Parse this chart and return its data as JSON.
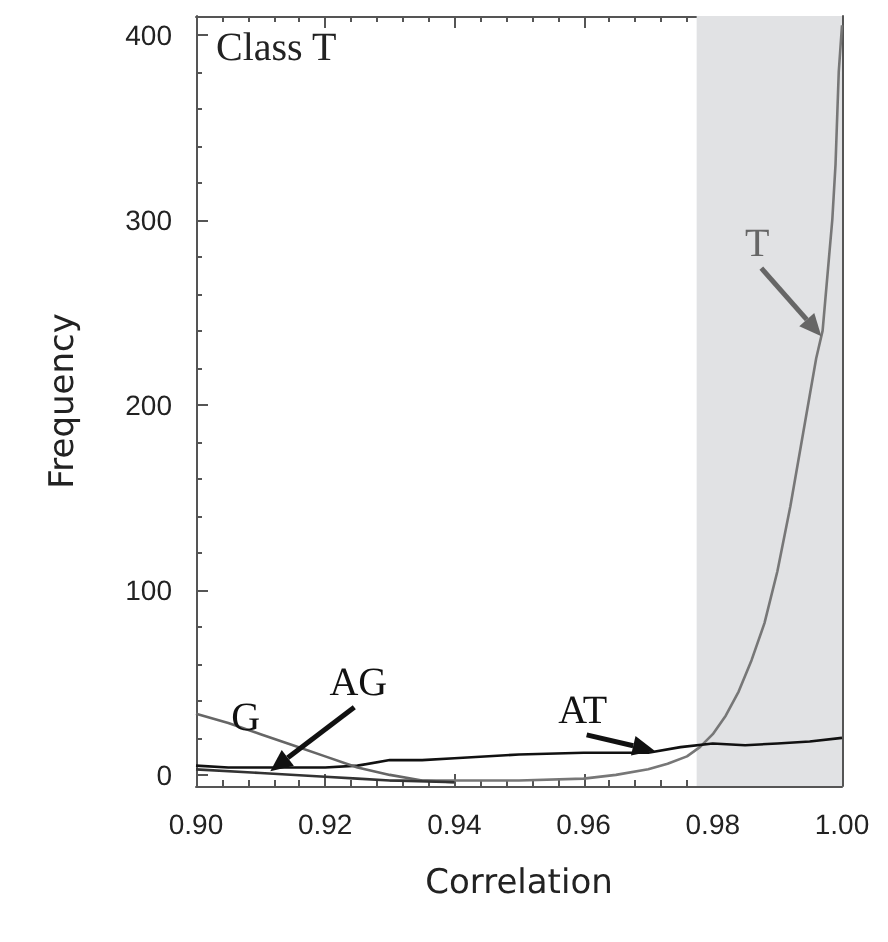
{
  "chart_data": {
    "type": "line",
    "xlabel": "Correlation",
    "ylabel": "Frequency",
    "xlim": [
      0.9,
      1.0
    ],
    "xticks": [
      {
        "value": 0.9,
        "label": "0.90"
      },
      {
        "value": 0.92,
        "label": "0.92"
      },
      {
        "value": 0.94,
        "label": "0.94"
      },
      {
        "value": 0.96,
        "label": "0.96"
      },
      {
        "value": 0.98,
        "label": "0.98"
      },
      {
        "value": 1.0,
        "label": "1.00"
      }
    ],
    "ylim": [
      -6,
      410
    ],
    "yticks": [
      0,
      100,
      200,
      300,
      400
    ],
    "grid": false,
    "marker": "none",
    "line_style": "solid",
    "bands": [
      {
        "axis": "x",
        "from": 0.9775,
        "to": 1.0,
        "color": "#e1e2e4"
      }
    ],
    "series": [
      {
        "color": "#777777",
        "x": [
          0.93,
          0.94,
          0.95,
          0.96,
          0.965,
          0.97,
          0.973,
          0.976,
          0.978,
          0.98,
          0.982,
          0.984,
          0.986,
          0.988,
          0.99,
          0.992,
          0.994,
          0.995,
          0.996,
          0.997,
          0.998,
          0.9985,
          0.999,
          0.9995,
          1.0
        ],
        "values": [
          -3,
          -3,
          -3,
          -2,
          0,
          3,
          6,
          10,
          15,
          22,
          32,
          45,
          62,
          82,
          110,
          145,
          185,
          205,
          225,
          240,
          280,
          300,
          330,
          380,
          405
        ]
      },
      {
        "color": "#111111",
        "x": [
          0.9,
          0.905,
          0.91,
          0.92,
          0.925,
          0.93,
          0.935,
          0.94,
          0.95,
          0.96,
          0.97,
          0.975,
          0.98,
          0.985,
          0.99,
          0.995,
          1.0
        ],
        "values": [
          5,
          4,
          4,
          4,
          5,
          8,
          8,
          9,
          11,
          12,
          12,
          15,
          17,
          16,
          17,
          18,
          20
        ]
      },
      {
        "color": "#666666",
        "x": [
          0.9,
          0.905,
          0.91,
          0.915,
          0.92,
          0.925,
          0.93,
          0.935,
          0.94
        ],
        "values": [
          33,
          28,
          22,
          16,
          10,
          4,
          0,
          -3,
          -4
        ]
      },
      {
        "color": "#333333",
        "x": [
          0.9,
          0.91,
          0.92,
          0.925,
          0.93,
          0.94
        ],
        "values": [
          3,
          1,
          -1,
          -2,
          -3,
          -4
        ]
      }
    ],
    "annotations": [
      "Class T",
      {
        "text": "T",
        "x": 0.9968,
        "y": 237
      },
      {
        "text": "AT",
        "x": 0.971,
        "y": 13
      },
      {
        "text": "G",
        "x": 0.9015,
        "y": 33
      },
      {
        "text": "AG",
        "x": 0.9115,
        "y": 2
      }
    ]
  }
}
